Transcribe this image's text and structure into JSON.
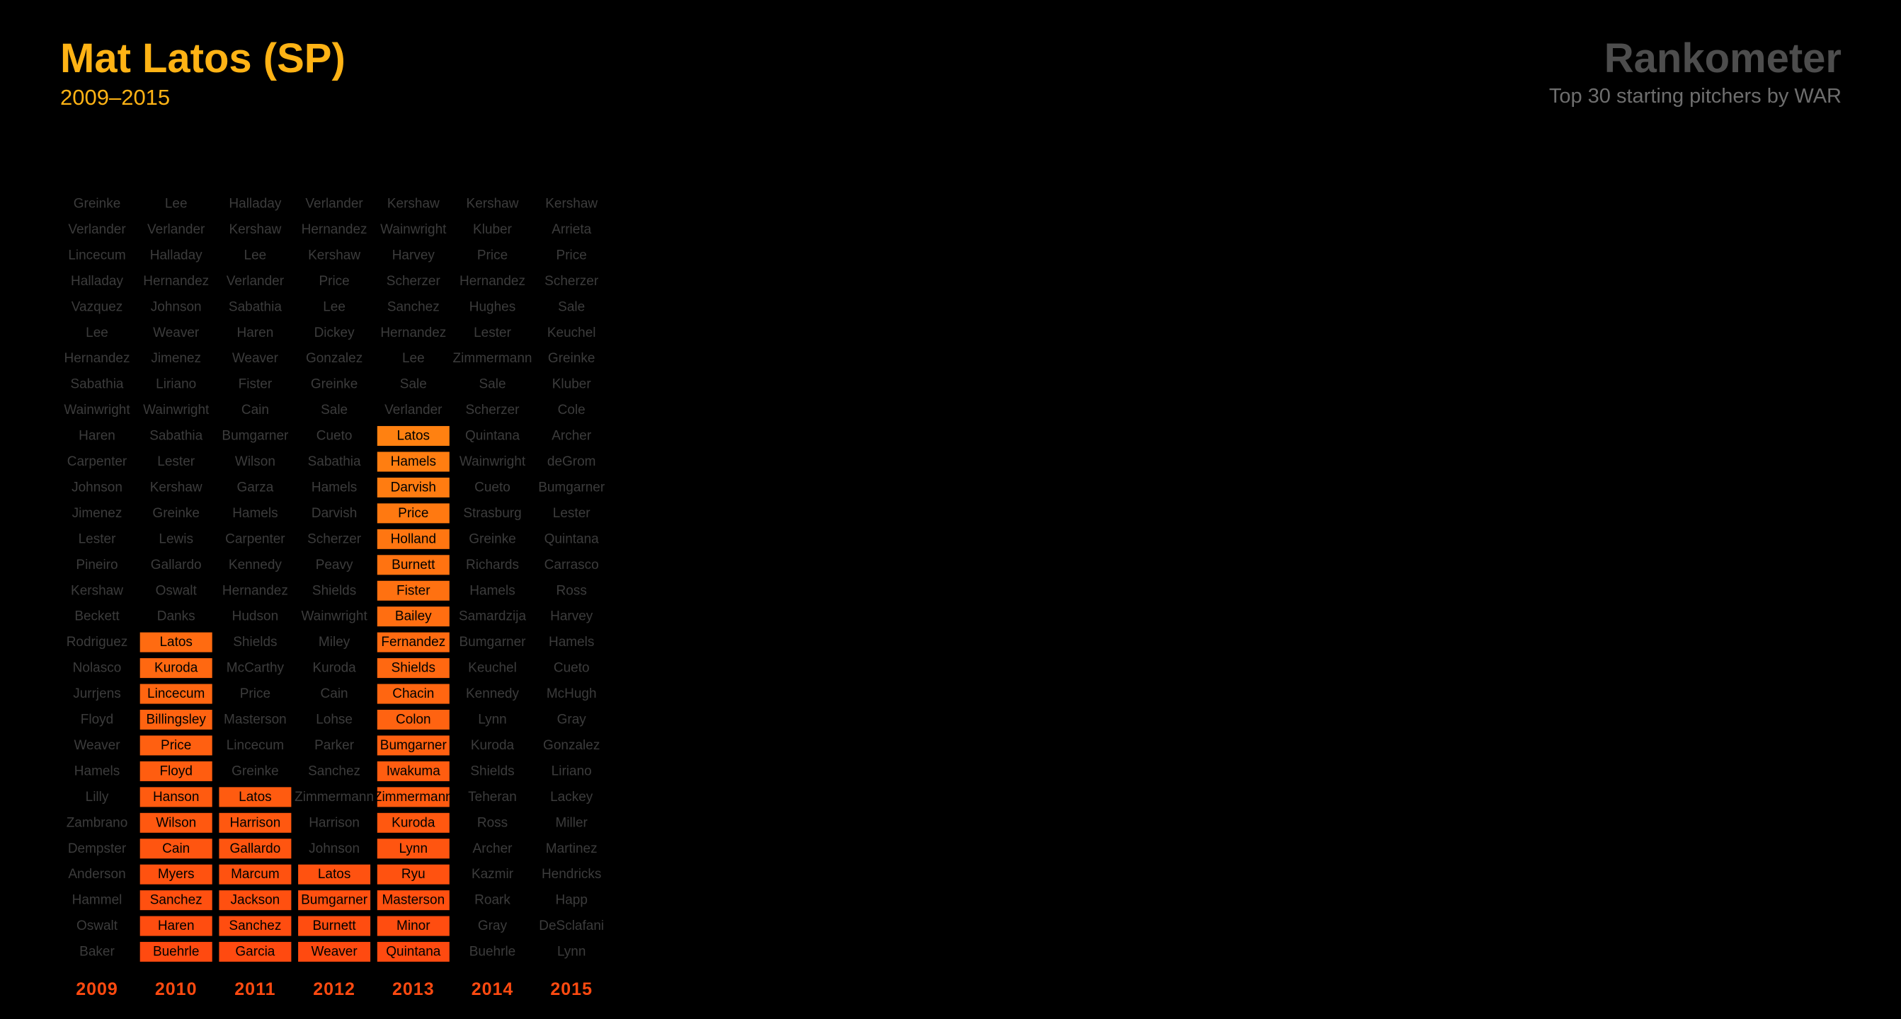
{
  "header": {
    "title": "Mat Latos (SP)",
    "years_range": "2009–2015",
    "brand": "Rankometer",
    "tagline": "Top 30 starting pitchers by WAR"
  },
  "colors": {
    "background": "#000000",
    "title": "#FFB315",
    "brand": "#4d4d4d",
    "muted_name": "#3c3c3c",
    "year_label": "#FF4A10",
    "highlight_top": "#FF9A12",
    "highlight_bottom": "#FF4A10",
    "highlight_text": "#000000"
  },
  "chart_data": {
    "type": "table",
    "x": [
      "2009",
      "2010",
      "2011",
      "2012",
      "2013",
      "2014",
      "2015"
    ],
    "columns": [
      {
        "year": "2009",
        "highlight_from_rank": null,
        "names": [
          "Greinke",
          "Verlander",
          "Lincecum",
          "Halladay",
          "Vazquez",
          "Lee",
          "Hernandez",
          "Sabathia",
          "Wainwright",
          "Haren",
          "Carpenter",
          "Johnson",
          "Jimenez",
          "Lester",
          "Pineiro",
          "Kershaw",
          "Beckett",
          "Rodriguez",
          "Nolasco",
          "Jurrjens",
          "Floyd",
          "Weaver",
          "Hamels",
          "Lilly",
          "Zambrano",
          "Dempster",
          "Anderson",
          "Hammel",
          "Oswalt",
          "Baker"
        ]
      },
      {
        "year": "2010",
        "highlight_from_rank": 18,
        "names": [
          "Lee",
          "Verlander",
          "Halladay",
          "Hernandez",
          "Johnson",
          "Weaver",
          "Jimenez",
          "Liriano",
          "Wainwright",
          "Sabathia",
          "Lester",
          "Kershaw",
          "Greinke",
          "Lewis",
          "Gallardo",
          "Oswalt",
          "Danks",
          "Latos",
          "Kuroda",
          "Lincecum",
          "Billingsley",
          "Price",
          "Floyd",
          "Hanson",
          "Wilson",
          "Cain",
          "Myers",
          "Sanchez",
          "Haren",
          "Buehrle"
        ]
      },
      {
        "year": "2011",
        "highlight_from_rank": 24,
        "names": [
          "Halladay",
          "Kershaw",
          "Lee",
          "Verlander",
          "Sabathia",
          "Haren",
          "Weaver",
          "Fister",
          "Cain",
          "Bumgarner",
          "Wilson",
          "Garza",
          "Hamels",
          "Carpenter",
          "Kennedy",
          "Hernandez",
          "Hudson",
          "Shields",
          "McCarthy",
          "Price",
          "Masterson",
          "Lincecum",
          "Greinke",
          "Latos",
          "Harrison",
          "Gallardo",
          "Marcum",
          "Jackson",
          "Sanchez",
          "Garcia"
        ]
      },
      {
        "year": "2012",
        "highlight_from_rank": 27,
        "names": [
          "Verlander",
          "Hernandez",
          "Kershaw",
          "Price",
          "Lee",
          "Dickey",
          "Gonzalez",
          "Greinke",
          "Sale",
          "Cueto",
          "Sabathia",
          "Hamels",
          "Darvish",
          "Scherzer",
          "Peavy",
          "Shields",
          "Wainwright",
          "Miley",
          "Kuroda",
          "Cain",
          "Lohse",
          "Parker",
          "Sanchez",
          "Zimmermann",
          "Harrison",
          "Johnson",
          "Latos",
          "Bumgarner",
          "Burnett",
          "Weaver"
        ]
      },
      {
        "year": "2013",
        "highlight_from_rank": 10,
        "names": [
          "Kershaw",
          "Wainwright",
          "Harvey",
          "Scherzer",
          "Sanchez",
          "Hernandez",
          "Lee",
          "Sale",
          "Verlander",
          "Latos",
          "Hamels",
          "Darvish",
          "Price",
          "Holland",
          "Burnett",
          "Fister",
          "Bailey",
          "Fernandez",
          "Shields",
          "Chacin",
          "Colon",
          "Bumgarner",
          "Iwakuma",
          "Zimmermann",
          "Kuroda",
          "Lynn",
          "Ryu",
          "Masterson",
          "Minor",
          "Quintana"
        ]
      },
      {
        "year": "2014",
        "highlight_from_rank": null,
        "names": [
          "Kershaw",
          "Kluber",
          "Price",
          "Hernandez",
          "Hughes",
          "Lester",
          "Zimmermann",
          "Sale",
          "Scherzer",
          "Quintana",
          "Wainwright",
          "Cueto",
          "Strasburg",
          "Greinke",
          "Richards",
          "Hamels",
          "Samardzija",
          "Bumgarner",
          "Keuchel",
          "Kennedy",
          "Lynn",
          "Kuroda",
          "Shields",
          "Teheran",
          "Ross",
          "Archer",
          "Kazmir",
          "Roark",
          "Gray",
          "Buehrle"
        ]
      },
      {
        "year": "2015",
        "highlight_from_rank": null,
        "names": [
          "Kershaw",
          "Arrieta",
          "Price",
          "Scherzer",
          "Sale",
          "Keuchel",
          "Greinke",
          "Kluber",
          "Cole",
          "Archer",
          "deGrom",
          "Bumgarner",
          "Lester",
          "Quintana",
          "Carrasco",
          "Ross",
          "Harvey",
          "Hamels",
          "Cueto",
          "McHugh",
          "Gray",
          "Gonzalez",
          "Liriano",
          "Lackey",
          "Miller",
          "Martinez",
          "Hendricks",
          "Happ",
          "DeSclafani",
          "Lynn"
        ]
      }
    ]
  }
}
